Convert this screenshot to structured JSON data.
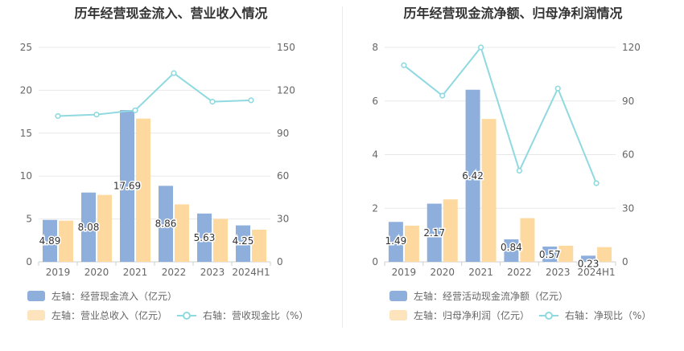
{
  "chart_data": [
    {
      "type": "bar",
      "title": "历年经营现金流入、营业收入情况",
      "categories": [
        "2019",
        "2020",
        "2021",
        "2022",
        "2023",
        "2024H1"
      ],
      "left_axis": {
        "ylim": [
          0,
          25
        ],
        "ticks": [
          "0",
          "5",
          "10",
          "15",
          "20",
          "25"
        ]
      },
      "right_axis": {
        "ylim": [
          0,
          150
        ],
        "ticks": [
          "0",
          "30",
          "60",
          "90",
          "120",
          "150"
        ]
      },
      "series": [
        {
          "name": "左轴：经营现金流入（亿元）",
          "kind": "bar",
          "axis": "left",
          "color": "#8eaedc",
          "values": [
            4.89,
            8.08,
            17.69,
            8.86,
            5.63,
            4.25
          ],
          "labels": [
            "4.89",
            "8.08",
            "17.69",
            "8.86",
            "5.63",
            "4.25"
          ]
        },
        {
          "name": "左轴：营业总收入（亿元）",
          "kind": "bar",
          "axis": "left",
          "color": "#fdd9a0",
          "values": [
            4.8,
            7.8,
            16.7,
            6.7,
            5.0,
            3.75
          ]
        },
        {
          "name": "右轴：营收现金比（%）",
          "kind": "line",
          "axis": "right",
          "color": "#8fd9e0",
          "values": [
            102,
            103,
            106,
            132,
            112,
            113
          ]
        }
      ],
      "legend_rows": [
        [
          "左轴：经营现金流入（亿元）"
        ],
        [
          "左轴：营业总收入（亿元）",
          "右轴：营收现金比（%）"
        ]
      ]
    },
    {
      "type": "bar",
      "title": "历年经营现金流净额、归母净利润情况",
      "categories": [
        "2019",
        "2020",
        "2021",
        "2022",
        "2023",
        "2024H1"
      ],
      "left_axis": {
        "ylim": [
          0,
          8
        ],
        "ticks": [
          "0",
          "2",
          "4",
          "6",
          "8"
        ]
      },
      "right_axis": {
        "ylim": [
          0,
          120
        ],
        "ticks": [
          "0",
          "30",
          "60",
          "90",
          "120"
        ]
      },
      "series": [
        {
          "name": "左轴：经营活动现金流净额（亿元）",
          "kind": "bar",
          "axis": "left",
          "color": "#8eaedc",
          "values": [
            1.49,
            2.17,
            6.42,
            0.84,
            0.57,
            0.23
          ],
          "labels": [
            "1.49",
            "2.17",
            "6.42",
            "0.84",
            "0.57",
            "0.23"
          ]
        },
        {
          "name": "左轴：归母净利润（亿元）",
          "kind": "bar",
          "axis": "left",
          "color": "#fdd9a0",
          "values": [
            1.35,
            2.33,
            5.33,
            1.63,
            0.6,
            0.55
          ]
        },
        {
          "name": "右轴：净现比（%）",
          "kind": "line",
          "axis": "right",
          "color": "#8fd9e0",
          "values": [
            110,
            93,
            120,
            51,
            97,
            44
          ]
        }
      ],
      "legend_rows": [
        [
          "左轴：经营活动现金流净额（亿元）"
        ],
        [
          "左轴：归母净利润（亿元）",
          "右轴：净现比（%）"
        ]
      ]
    }
  ]
}
